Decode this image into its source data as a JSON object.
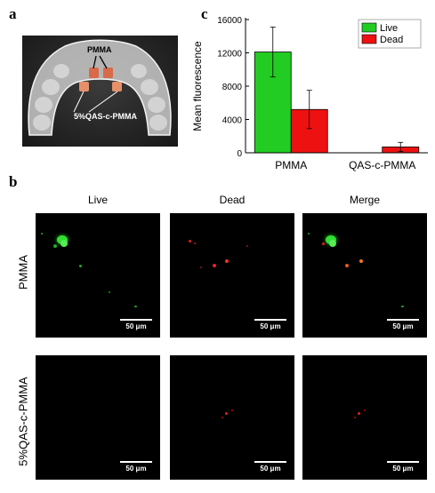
{
  "panels": {
    "a": "a",
    "b": "b",
    "c": "c"
  },
  "photo": {
    "label_pmma": "PMMA",
    "label_qas": "5%QAS-c-PMMA"
  },
  "chart_data": {
    "type": "bar",
    "categories": [
      "PMMA",
      "QAS-c-PMMA"
    ],
    "series": [
      {
        "name": "Live",
        "color": "#22cc22",
        "values": [
          12100,
          0
        ],
        "errors": [
          3000,
          0
        ]
      },
      {
        "name": "Dead",
        "color": "#ee1111",
        "values": [
          5200,
          700
        ],
        "errors": [
          2300,
          550
        ]
      }
    ],
    "ylabel": "Mean fluorescence",
    "xlabel": "",
    "ylim": [
      0,
      16000
    ],
    "yticks": [
      0,
      4000,
      8000,
      12000,
      16000
    ],
    "legend_position": "top-right",
    "grid": false
  },
  "micro": {
    "columns": [
      "Live",
      "Dead",
      "Merge"
    ],
    "rows": [
      "PMMA",
      "5%QAS-c-PMMA"
    ],
    "scale_bar": "50 μm"
  }
}
